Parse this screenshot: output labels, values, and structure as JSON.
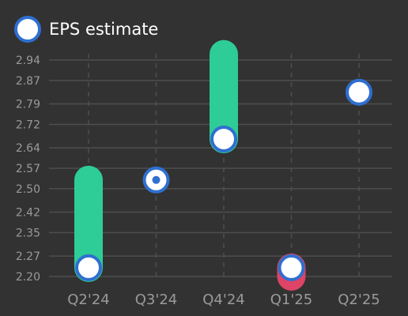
{
  "legend": {
    "label": "EPS estimate",
    "marker_color": "#ffffff",
    "marker_border": "#2f6fd0"
  },
  "chart_data": {
    "type": "scatter",
    "title": "",
    "xlabel": "",
    "ylabel": "",
    "categories": [
      "Q2'24",
      "Q3'24",
      "Q4'24",
      "Q1'25",
      "Q2'25"
    ],
    "y_ticks": [
      "2.20",
      "2.27",
      "2.35",
      "2.42",
      "2.50",
      "2.57",
      "2.64",
      "2.72",
      "2.79",
      "2.87",
      "2.94"
    ],
    "ylim": [
      2.2,
      2.94
    ],
    "grid": true,
    "series": [
      {
        "name": "EPS estimate",
        "values": [
          2.23,
          2.53,
          2.67,
          2.23,
          2.83
        ]
      },
      {
        "values": [
          2.53,
          2.53,
          2.96,
          2.2,
          null
        ]
      }
    ],
    "colors": {
      "beat": "#2ecc97",
      "miss": "#dd4465",
      "marker_fill": "#ffffff",
      "marker_border": "#2f6fd0",
      "grid": "#4e4e4e",
      "tick": "#9a9a9a"
    }
  }
}
